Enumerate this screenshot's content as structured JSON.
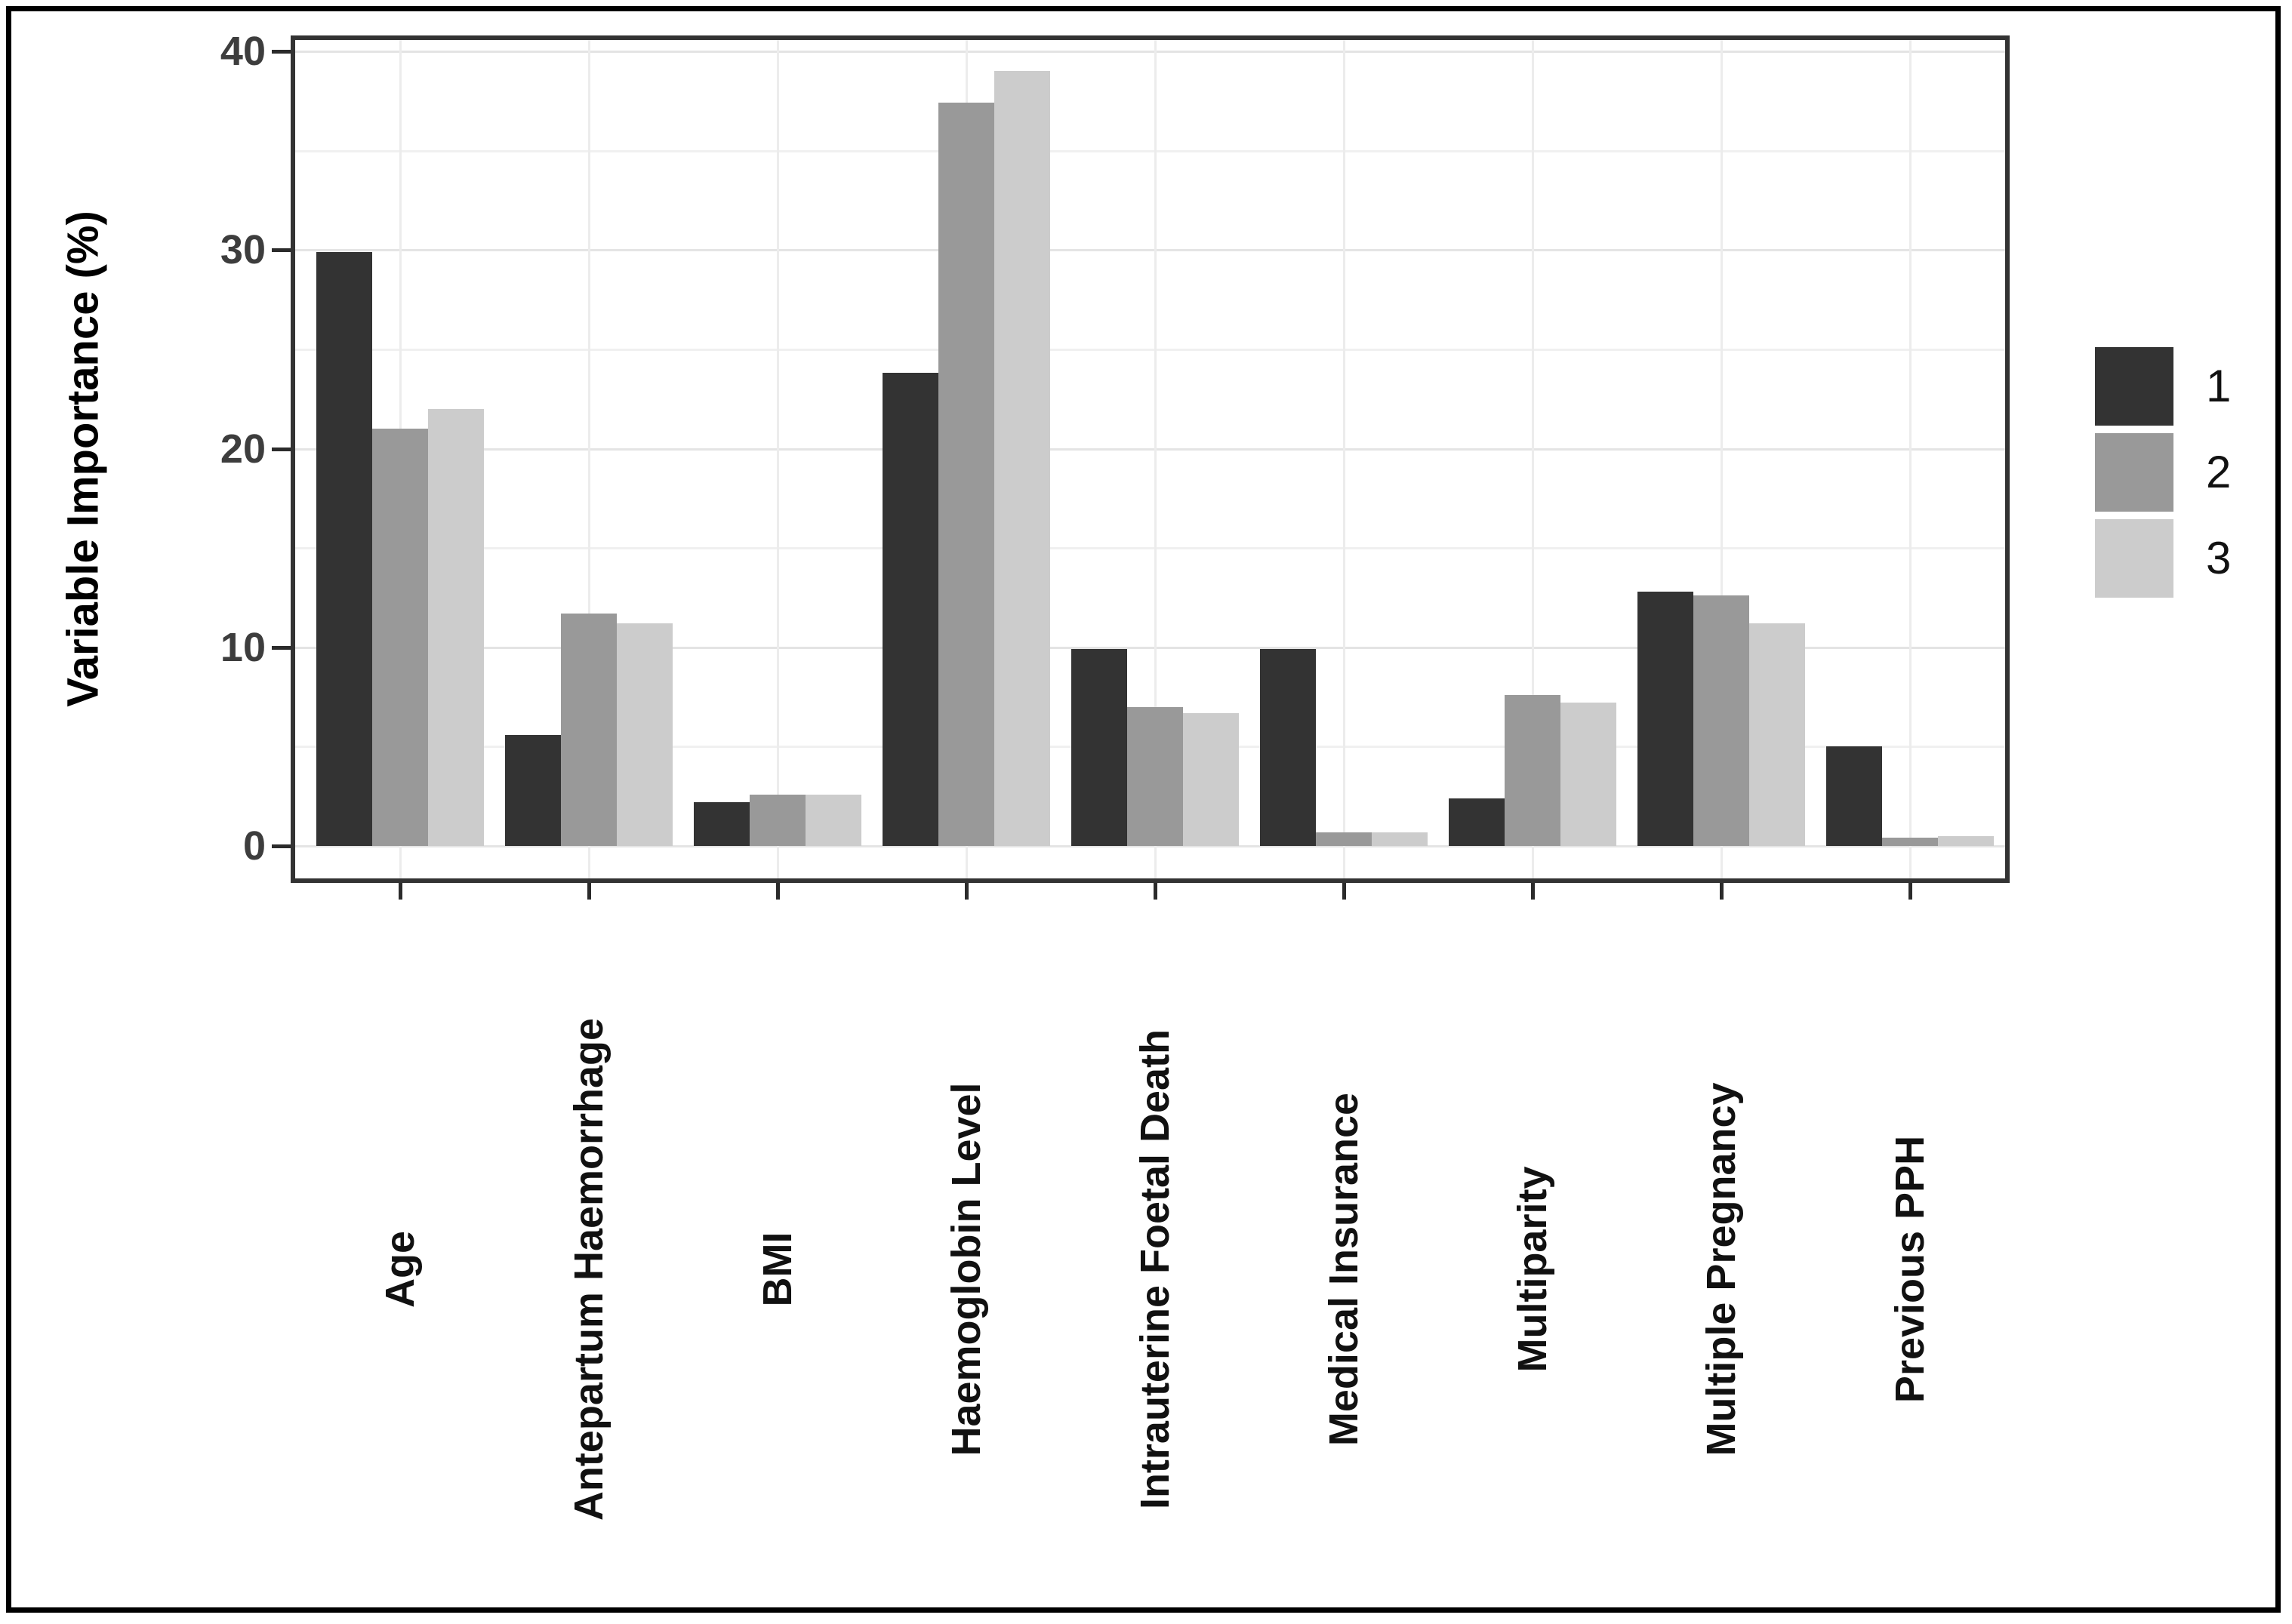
{
  "figure": {
    "background_color": "#ffffff",
    "outer_border_color": "#000000",
    "panel_border_color": "#333333",
    "gridline_color": "#ececec",
    "tick_color": "#2b2b2b"
  },
  "chart_data": {
    "type": "bar",
    "title": "",
    "xlabel": "",
    "ylabel": "Variable Importance (%)",
    "ylim": [
      0,
      40
    ],
    "yticks": [
      0,
      10,
      20,
      30,
      40
    ],
    "minor_grid_step": 5,
    "grid": "horizontal major every 10 and minor every 5; vertical line at each category center",
    "legend_position": "right",
    "legend_labels": [
      "1",
      "2",
      "3"
    ],
    "categories": [
      "Age",
      "Antepartum Haemorrhage",
      "BMI",
      "Haemoglobin Level",
      "Intrauterine Foetal Death",
      "Medical Insurance",
      "Multiparity",
      "Multiple Pregnancy",
      "Previous PPH"
    ],
    "series": [
      {
        "name": "1",
        "color": "#333333",
        "values": [
          29.9,
          5.6,
          2.2,
          23.8,
          9.9,
          9.9,
          2.4,
          12.8,
          5.0
        ]
      },
      {
        "name": "2",
        "color": "#999999",
        "values": [
          21.0,
          11.7,
          2.6,
          37.4,
          7.0,
          0.7,
          7.6,
          12.6,
          0.4
        ]
      },
      {
        "name": "3",
        "color": "#cccccc",
        "values": [
          22.0,
          11.2,
          2.6,
          39.0,
          6.7,
          0.7,
          7.2,
          11.2,
          0.5
        ]
      }
    ]
  }
}
